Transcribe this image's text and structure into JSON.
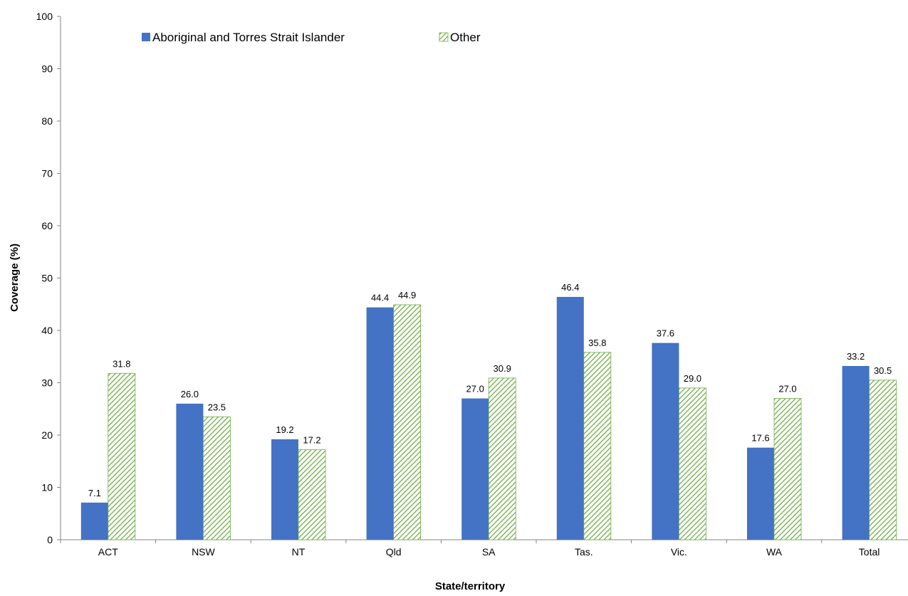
{
  "chart_data": {
    "type": "bar",
    "xlabel": "State/territory",
    "ylabel": "Coverage (%)",
    "ylim": [
      0,
      100
    ],
    "yticks": [
      0,
      10,
      20,
      30,
      40,
      50,
      60,
      70,
      80,
      90,
      100
    ],
    "grid": false,
    "legend_position": "top-left",
    "categories": [
      "ACT",
      "NSW",
      "NT",
      "Qld",
      "SA",
      "Tas.",
      "Vic.",
      "WA",
      "Total"
    ],
    "series": [
      {
        "name": "Aboriginal and Torres Strait Islander",
        "color": "#4472C4",
        "pattern": "solid",
        "values": [
          7.1,
          26.0,
          19.2,
          44.4,
          27.0,
          46.4,
          37.6,
          17.6,
          33.2
        ]
      },
      {
        "name": "Other",
        "color": "#70AD47",
        "pattern": "diagonal-hatch",
        "values": [
          31.8,
          23.5,
          17.2,
          44.9,
          30.9,
          35.8,
          29.0,
          27.0,
          30.5
        ]
      }
    ]
  }
}
